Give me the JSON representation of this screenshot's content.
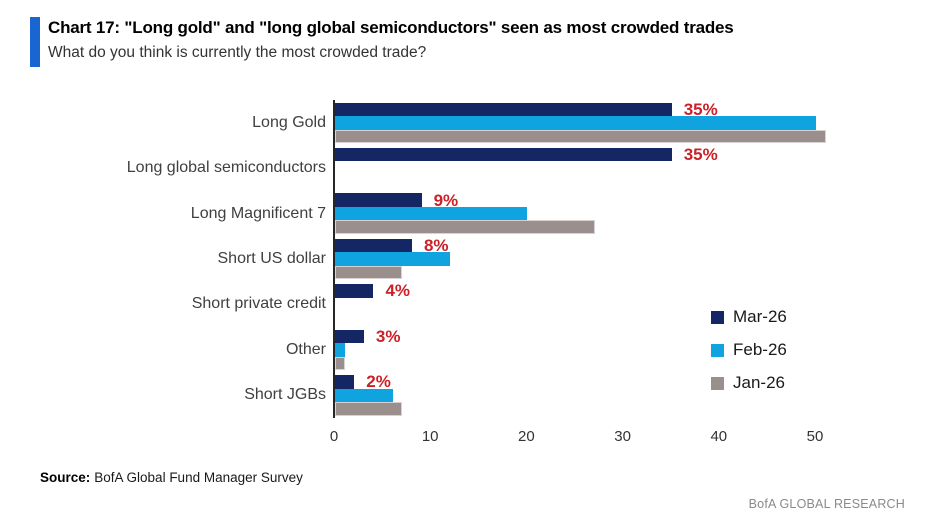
{
  "header": {
    "title": "Chart 17: \"Long gold\" and \"long global semiconductors\" seen as most crowded trades",
    "subtitle": "What do you think is currently the most crowded trade?",
    "accent_color": "#1966D2"
  },
  "chart_data": {
    "type": "bar",
    "orientation": "horizontal",
    "title": "What do you think is currently the most crowded trade?",
    "categories": [
      "Long Gold",
      "Long global semiconductors",
      "Long Magnificent 7",
      "Short US dollar",
      "Short private credit",
      "Other",
      "Short JGBs"
    ],
    "series": [
      {
        "name": "Mar-26",
        "color": "#142664",
        "values": [
          35,
          35,
          9,
          8,
          4,
          3,
          2
        ]
      },
      {
        "name": "Feb-26",
        "color": "#0FA3E0",
        "values": [
          50,
          null,
          20,
          12,
          null,
          1,
          6
        ]
      },
      {
        "name": "Jan-26",
        "color": "#9A8F8C",
        "values": [
          51,
          null,
          27,
          7,
          null,
          1,
          7
        ]
      }
    ],
    "data_labels": {
      "series": "Mar-26",
      "values": [
        "35%",
        "35%",
        "9%",
        "8%",
        "4%",
        "3%",
        "2%"
      ],
      "color": "#CC2128"
    },
    "x_ticks": [
      "0",
      "10",
      "20",
      "30",
      "40",
      "50"
    ],
    "x_tick_values": [
      0,
      10,
      20,
      30,
      40,
      50
    ],
    "xlim": [
      0,
      50
    ],
    "grid": false,
    "legend_position": "middle-right"
  },
  "footer": {
    "source_label": "Source:",
    "source_text": "BofA Global Fund Manager Survey",
    "brand": "BofA GLOBAL RESEARCH"
  }
}
